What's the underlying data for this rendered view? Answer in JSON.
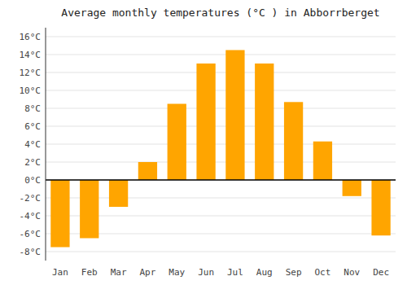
{
  "chart_data": {
    "type": "bar",
    "title": "Average monthly temperatures (°C ) in Abborrberget",
    "categories": [
      "Jan",
      "Feb",
      "Mar",
      "Apr",
      "May",
      "Jun",
      "Jul",
      "Aug",
      "Sep",
      "Oct",
      "Nov",
      "Dec"
    ],
    "values": [
      -7.5,
      -6.5,
      -3.0,
      2.0,
      8.5,
      13.0,
      14.5,
      13.0,
      8.7,
      4.3,
      -1.8,
      -6.2
    ],
    "color": "#FFA500",
    "ylim": [
      -9,
      17
    ],
    "yticks": [
      {
        "value": -8,
        "label": "-8°C"
      },
      {
        "value": -6,
        "label": "-6°C"
      },
      {
        "value": -4,
        "label": "-4°C"
      },
      {
        "value": -2,
        "label": "-2°C"
      },
      {
        "value": 0,
        "label": "0°C"
      },
      {
        "value": 2,
        "label": "2°C"
      },
      {
        "value": 4,
        "label": "4°C"
      },
      {
        "value": 6,
        "label": "6°C"
      },
      {
        "value": 8,
        "label": "8°C"
      },
      {
        "value": 10,
        "label": "10°C"
      },
      {
        "value": 12,
        "label": "12°C"
      },
      {
        "value": 14,
        "label": "14°C"
      },
      {
        "value": 16,
        "label": "16°C"
      }
    ],
    "grid": true
  }
}
